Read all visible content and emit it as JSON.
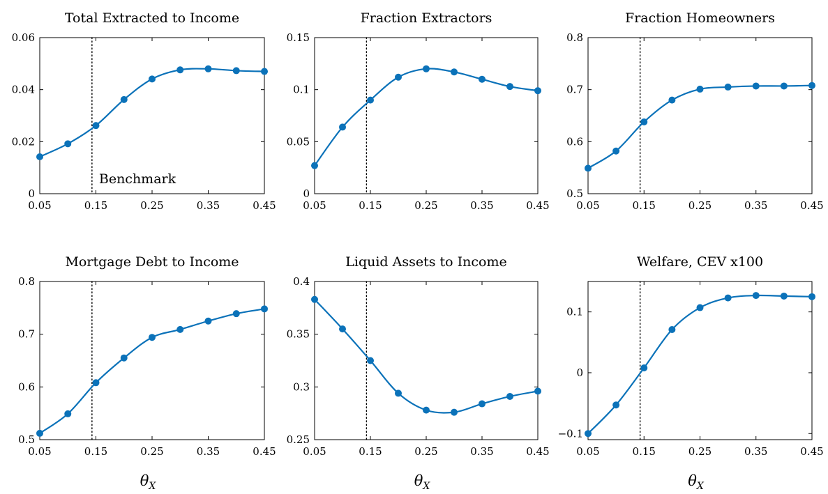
{
  "figure": {
    "benchmark_x": 0.143,
    "benchmark_label": "Benchmark",
    "series_color": "#0b72b9",
    "xlabel_symbol": "θ",
    "xlabel_subscript": "X"
  },
  "chart_data": [
    {
      "type": "line",
      "title": "Total Extracted to Income",
      "xlabel": "",
      "ylabel": "",
      "x": [
        0.05,
        0.1,
        0.15,
        0.2,
        0.25,
        0.3,
        0.35,
        0.4,
        0.45
      ],
      "y": [
        0.0142,
        0.0192,
        0.0262,
        0.0362,
        0.0441,
        0.0476,
        0.048,
        0.0473,
        0.047
      ],
      "xlim": [
        0.05,
        0.45
      ],
      "ylim": [
        0,
        0.06
      ],
      "xticks": [
        "0.05",
        "0.15",
        "0.25",
        "0.35",
        "0.45"
      ],
      "xtick_values": [
        0.05,
        0.15,
        0.25,
        0.35,
        0.45
      ],
      "yticks": [
        "0",
        "0.02",
        "0.04",
        "0.06"
      ],
      "ytick_values": [
        0,
        0.02,
        0.04,
        0.06
      ],
      "annotation": "Benchmark"
    },
    {
      "type": "line",
      "title": "Fraction Extractors",
      "xlabel": "",
      "ylabel": "",
      "x": [
        0.05,
        0.1,
        0.15,
        0.2,
        0.25,
        0.3,
        0.35,
        0.4,
        0.45
      ],
      "y": [
        0.027,
        0.064,
        0.09,
        0.112,
        0.12,
        0.117,
        0.11,
        0.103,
        0.099
      ],
      "xlim": [
        0.05,
        0.45
      ],
      "ylim": [
        0,
        0.15
      ],
      "xticks": [
        "0.05",
        "0.15",
        "0.25",
        "0.35",
        "0.45"
      ],
      "xtick_values": [
        0.05,
        0.15,
        0.25,
        0.35,
        0.45
      ],
      "yticks": [
        "0",
        "0.05",
        "0.1",
        "0.15"
      ],
      "ytick_values": [
        0,
        0.05,
        0.1,
        0.15
      ]
    },
    {
      "type": "line",
      "title": "Fraction Homeowners",
      "xlabel": "",
      "ylabel": "",
      "x": [
        0.05,
        0.1,
        0.15,
        0.2,
        0.25,
        0.3,
        0.35,
        0.4,
        0.45
      ],
      "y": [
        0.549,
        0.582,
        0.638,
        0.68,
        0.701,
        0.705,
        0.707,
        0.707,
        0.708
      ],
      "xlim": [
        0.05,
        0.45
      ],
      "ylim": [
        0.5,
        0.8
      ],
      "xticks": [
        "0.05",
        "0.15",
        "0.25",
        "0.35",
        "0.45"
      ],
      "xtick_values": [
        0.05,
        0.15,
        0.25,
        0.35,
        0.45
      ],
      "yticks": [
        "0.5",
        "0.6",
        "0.7",
        "0.8"
      ],
      "ytick_values": [
        0.5,
        0.6,
        0.7,
        0.8
      ]
    },
    {
      "type": "line",
      "title": "Mortgage Debt to Income",
      "xlabel": "θX",
      "ylabel": "",
      "x": [
        0.05,
        0.1,
        0.15,
        0.2,
        0.25,
        0.3,
        0.35,
        0.4,
        0.45
      ],
      "y": [
        0.512,
        0.549,
        0.608,
        0.655,
        0.694,
        0.709,
        0.725,
        0.739,
        0.748
      ],
      "xlim": [
        0.05,
        0.45
      ],
      "ylim": [
        0.5,
        0.8
      ],
      "xticks": [
        "0.05",
        "0.15",
        "0.25",
        "0.35",
        "0.45"
      ],
      "xtick_values": [
        0.05,
        0.15,
        0.25,
        0.35,
        0.45
      ],
      "yticks": [
        "0.5",
        "0.6",
        "0.7",
        "0.8"
      ],
      "ytick_values": [
        0.5,
        0.6,
        0.7,
        0.8
      ]
    },
    {
      "type": "line",
      "title": "Liquid Assets to Income",
      "xlabel": "θX",
      "ylabel": "",
      "x": [
        0.05,
        0.1,
        0.15,
        0.2,
        0.25,
        0.3,
        0.35,
        0.4,
        0.45
      ],
      "y": [
        0.383,
        0.355,
        0.325,
        0.294,
        0.278,
        0.276,
        0.284,
        0.291,
        0.296
      ],
      "xlim": [
        0.05,
        0.45
      ],
      "ylim": [
        0.25,
        0.4
      ],
      "xticks": [
        "0.05",
        "0.15",
        "0.25",
        "0.35",
        "0.45"
      ],
      "xtick_values": [
        0.05,
        0.15,
        0.25,
        0.35,
        0.45
      ],
      "yticks": [
        "0.25",
        "0.3",
        "0.35",
        "0.4"
      ],
      "ytick_values": [
        0.25,
        0.3,
        0.35,
        0.4
      ]
    },
    {
      "type": "line",
      "title": "Welfare, CEV x100",
      "xlabel": "θX",
      "ylabel": "",
      "x": [
        0.05,
        0.1,
        0.15,
        0.2,
        0.25,
        0.3,
        0.35,
        0.4,
        0.45
      ],
      "y": [
        -0.1,
        -0.053,
        0.008,
        0.071,
        0.107,
        0.123,
        0.127,
        0.126,
        0.125
      ],
      "xlim": [
        0.05,
        0.45
      ],
      "ylim": [
        -0.11,
        0.15
      ],
      "xticks": [
        "0.05",
        "0.15",
        "0.25",
        "0.35",
        "0.45"
      ],
      "xtick_values": [
        0.05,
        0.15,
        0.25,
        0.35,
        0.45
      ],
      "yticks": [
        "−0.1",
        "0",
        "0.1"
      ],
      "ytick_values": [
        -0.1,
        0,
        0.1
      ]
    }
  ]
}
